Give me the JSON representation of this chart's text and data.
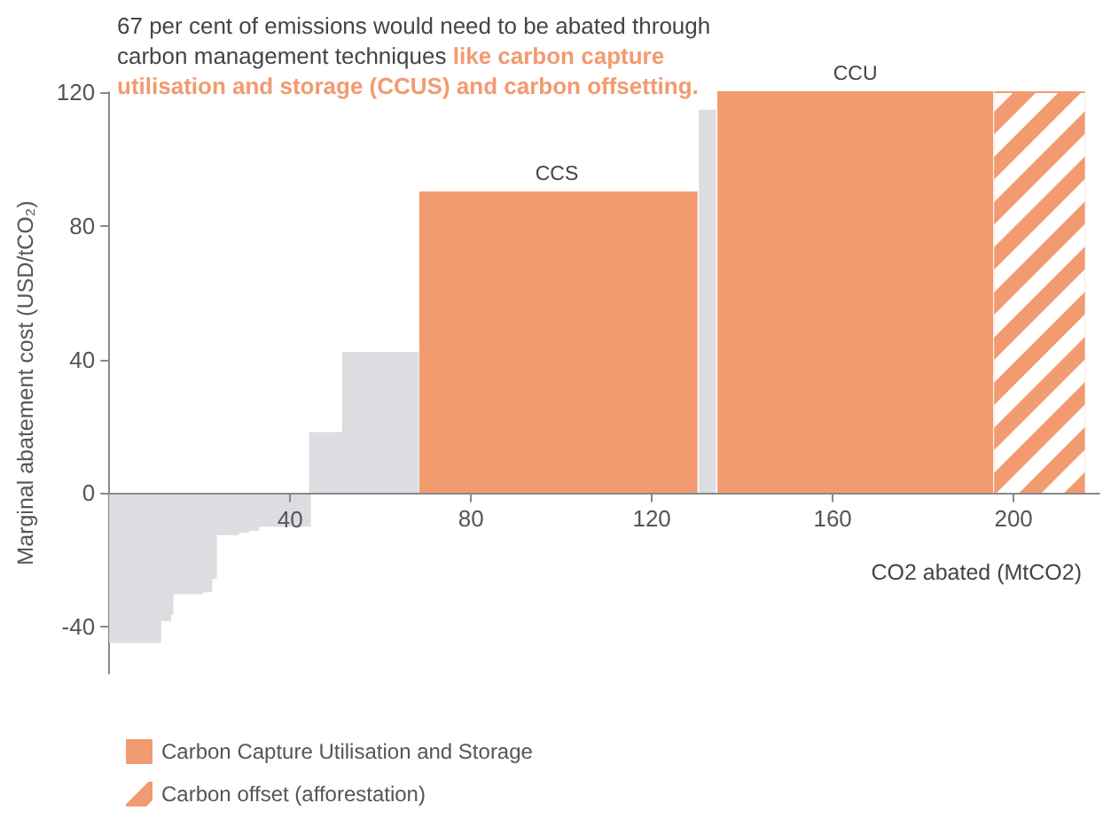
{
  "chart_data": {
    "type": "area",
    "title": "67 per cent of emissions would need to be abated through carbon management techniques",
    "subtitle": "like carbon capture utilisation and storage (CCUS) and carbon offsetting.",
    "xlabel": "CO2 abated (MtCO2)",
    "ylabel": "Marginal abatement cost (USD/tCO₂)",
    "xlim": [
      0,
      219
    ],
    "ylim": [
      -54,
      120
    ],
    "xticks": [
      40,
      80,
      120,
      160,
      200
    ],
    "yticks": [
      -40,
      0,
      40,
      80,
      120
    ],
    "legend": "bottom left",
    "series": [
      {
        "color": "#dcdde1",
        "x": [
          0,
          11.3,
          11.3,
          13.5,
          13.5,
          14,
          14,
          20.6,
          20.6,
          22.6,
          22.6,
          23.6,
          23.6,
          28.5,
          28.5,
          30.7,
          30.7,
          33,
          33,
          44.4,
          44.4,
          51.7,
          51.7,
          68.5,
          69,
          130.4,
          134.2
        ],
        "values": [
          -44.6,
          -44.6,
          -38,
          -38,
          -36,
          -36,
          -30,
          -30,
          -29.4,
          -29.4,
          -25.4,
          -25.4,
          -12.3,
          -12.3,
          -11.6,
          -11.6,
          -11,
          -11,
          -9.8,
          -9.8,
          18,
          18,
          42,
          42,
          null,
          114.5,
          114.5
        ]
      },
      {
        "name": "Carbon Capture Utilisation and Storage",
        "color": "#f29a70",
        "x": [
          68.6,
          130.1,
          132,
          134.5,
          195.5
        ],
        "values": [
          90,
          90,
          null,
          120,
          120
        ]
      },
      {
        "name": "Carbon offset (afforestation)",
        "color": "#f29a70",
        "x": [
          195.7,
          215.8
        ],
        "values": [
          120,
          120
        ]
      }
    ],
    "annotations": [
      {
        "text": "CCS",
        "x": 99,
        "y": 90
      },
      {
        "text": "CCU",
        "x": 165,
        "y": 120
      }
    ]
  }
}
